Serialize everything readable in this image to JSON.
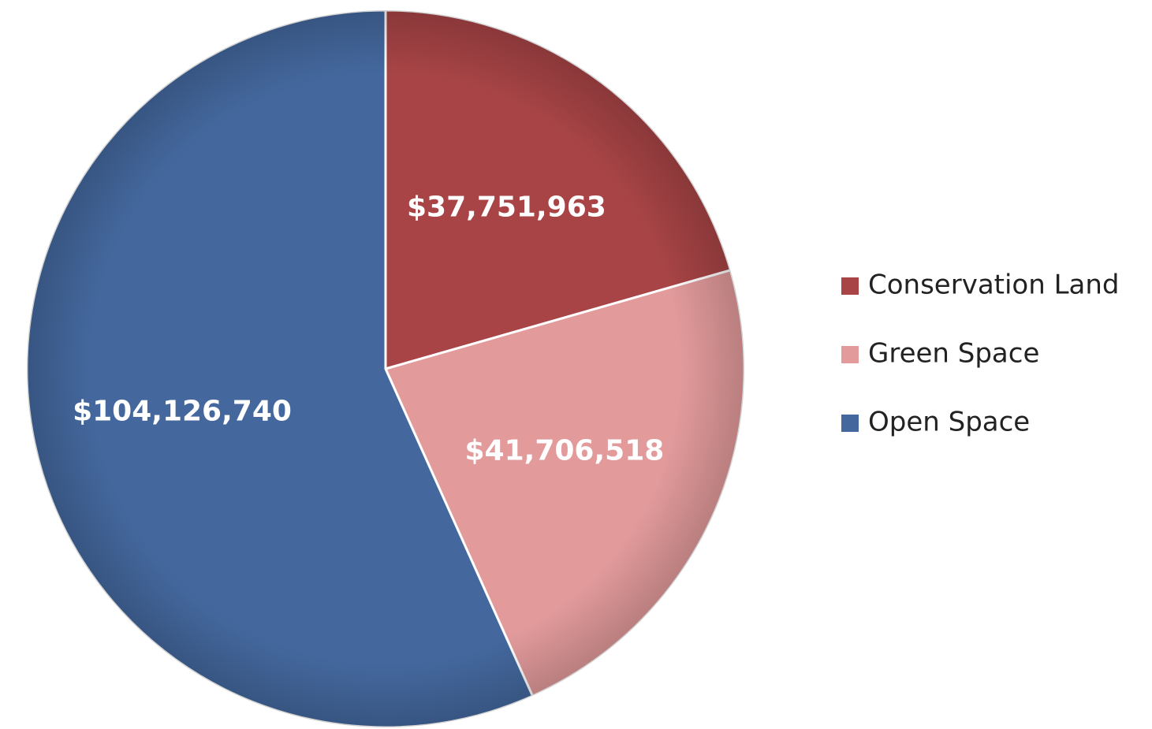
{
  "chart_data": {
    "type": "pie",
    "title": "",
    "categories": [
      "Conservation Land",
      "Green Space",
      "Open Space"
    ],
    "values": [
      37751963,
      41706518,
      104126740
    ],
    "labels": [
      "$37,751,963",
      "$41,706,518",
      "$104,126,740"
    ],
    "colors": [
      "#a84446",
      "#e29a9b",
      "#44689e"
    ],
    "legend_position": "right",
    "start_angle_deg": 0,
    "direction": "clockwise"
  }
}
